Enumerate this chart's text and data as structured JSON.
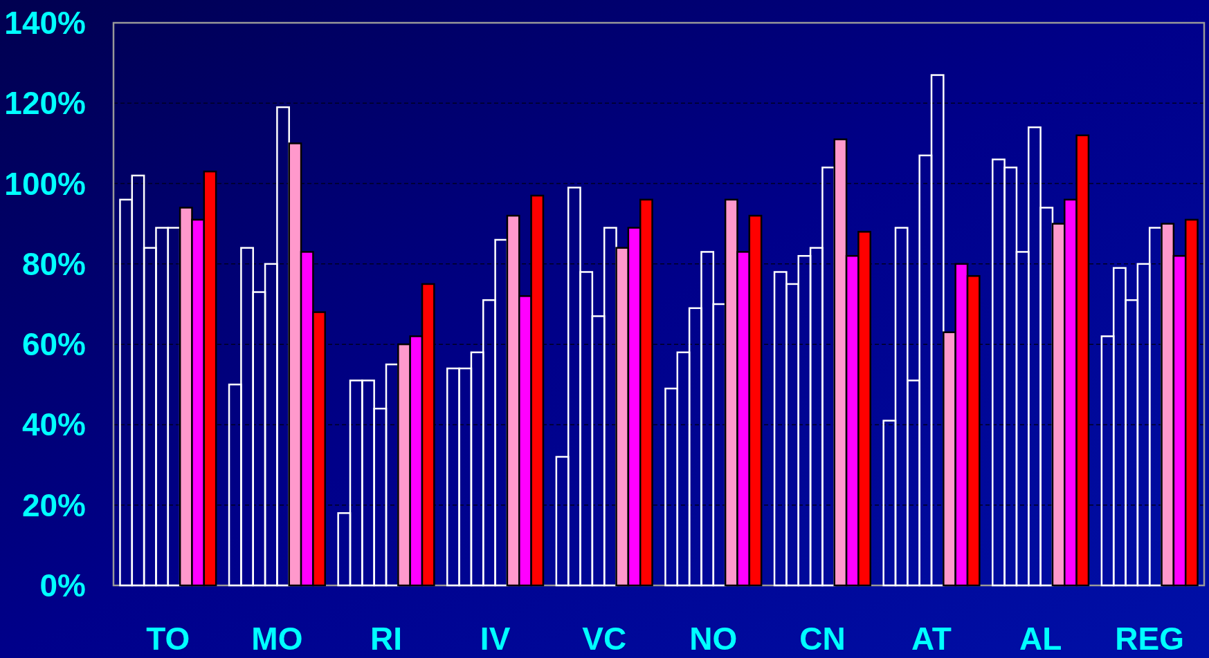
{
  "chart_data": {
    "type": "bar",
    "categories": [
      "TO",
      "MO",
      "RI",
      "IV",
      "VC",
      "NO",
      "CN",
      "AT",
      "AL",
      "REG"
    ],
    "series": [
      {
        "color": "#ffffff",
        "values": [
          96,
          50,
          18,
          54,
          32,
          49,
          78,
          41,
          106,
          62
        ]
      },
      {
        "color": "#ffffff",
        "values": [
          102,
          84,
          51,
          54,
          99,
          58,
          75,
          89,
          104,
          79
        ]
      },
      {
        "color": "#ffffff",
        "values": [
          84,
          73,
          51,
          58,
          78,
          69,
          82,
          51,
          83,
          71
        ]
      },
      {
        "color": "#ffffff",
        "values": [
          89,
          80,
          44,
          71,
          67,
          83,
          84,
          107,
          114,
          80
        ]
      },
      {
        "color": "#ffffff",
        "values": [
          89,
          119,
          55,
          86,
          89,
          70,
          104,
          127,
          94,
          89
        ]
      },
      {
        "color": "#ff99cc",
        "values": [
          94,
          110,
          60,
          92,
          84,
          96,
          111,
          63,
          90,
          90
        ]
      },
      {
        "color": "#ff00ff",
        "values": [
          91,
          83,
          62,
          72,
          89,
          83,
          82,
          80,
          96,
          82
        ]
      },
      {
        "color": "#ff0000",
        "values": [
          103,
          68,
          75,
          97,
          96,
          92,
          88,
          77,
          112,
          91
        ]
      }
    ],
    "ylim": [
      0,
      140
    ],
    "yticks": [
      {
        "value": 0,
        "label": "0%"
      },
      {
        "value": 20,
        "label": "20%"
      },
      {
        "value": 40,
        "label": "40%"
      },
      {
        "value": 60,
        "label": "60%"
      },
      {
        "value": 80,
        "label": "80%"
      },
      {
        "value": 100,
        "label": "100%"
      },
      {
        "value": 120,
        "label": "120%"
      },
      {
        "value": 140,
        "label": "140%"
      }
    ],
    "grid": "y"
  }
}
